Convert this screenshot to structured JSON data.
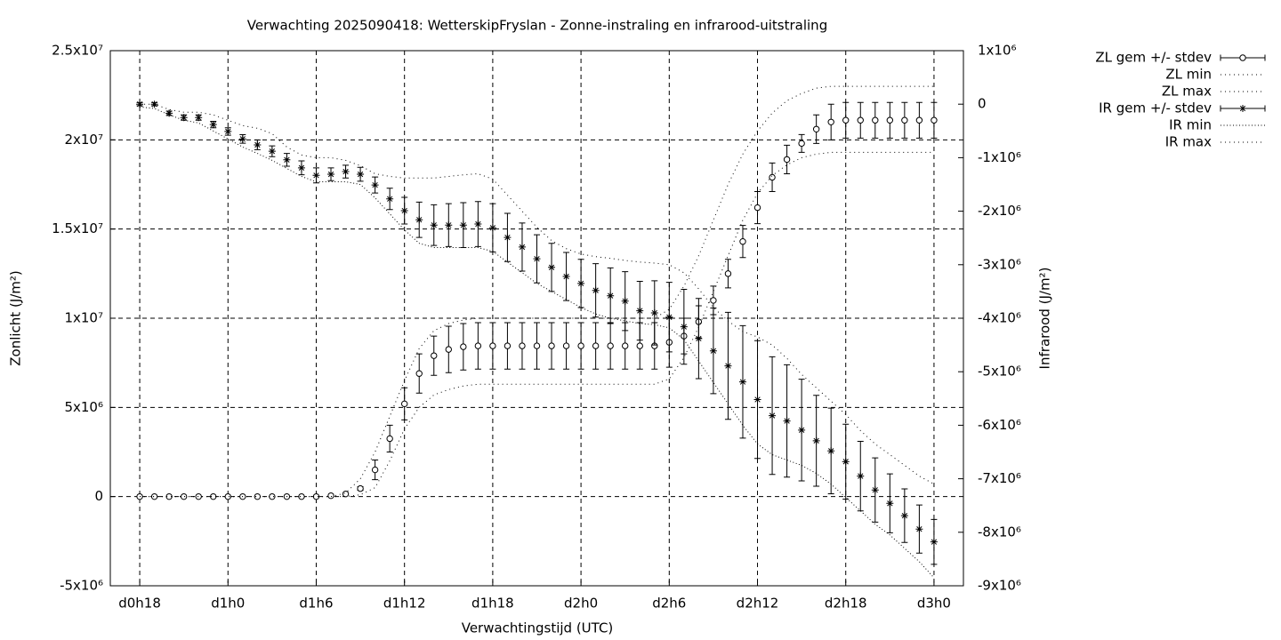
{
  "chart_data": {
    "type": "errorbar-line",
    "title": "Verwachting 2025090418: WetterskipFryslan - Zonne-instraling en infrarood-uitstraling",
    "x_label": "Verwachtingstijd (UTC)",
    "y_label": "Zonlicht (J/m²)",
    "y2_label": "Infrarood (J/m²)",
    "x": [
      18,
      19,
      20,
      21,
      22,
      23,
      24,
      25,
      26,
      27,
      28,
      29,
      30,
      31,
      32,
      33,
      34,
      35,
      36,
      37,
      38,
      39,
      40,
      41,
      42,
      43,
      44,
      45,
      46,
      47,
      48,
      49,
      50,
      51,
      52,
      53,
      54,
      55,
      56,
      57,
      58,
      59,
      60,
      61,
      62,
      63,
      64,
      65,
      66,
      67,
      68,
      69,
      70,
      71,
      72
    ],
    "xlim": [
      16,
      74
    ],
    "xticks": [
      {
        "value": 18,
        "label": "d0h18"
      },
      {
        "value": 24,
        "label": "d1h0"
      },
      {
        "value": 30,
        "label": "d1h6"
      },
      {
        "value": 36,
        "label": "d1h12"
      },
      {
        "value": 42,
        "label": "d1h18"
      },
      {
        "value": 48,
        "label": "d2h0"
      },
      {
        "value": 54,
        "label": "d2h6"
      },
      {
        "value": 60,
        "label": "d2h12"
      },
      {
        "value": 66,
        "label": "d2h18"
      },
      {
        "value": 72,
        "label": "d3h0"
      }
    ],
    "ylim": [
      -5000000.0,
      25000000.0
    ],
    "yticks": [
      {
        "value": -5000000.0,
        "label": "-5x10⁶"
      },
      0,
      {
        "value": 5000000.0,
        "label": "5x10⁶"
      },
      {
        "value": 10000000.0,
        "label": "1x10⁷"
      },
      {
        "value": 15000000.0,
        "label": "1.5x10⁷"
      },
      {
        "value": 20000000.0,
        "label": "2x10⁷"
      },
      {
        "value": 25000000.0,
        "label": "2.5x10⁷"
      }
    ],
    "y2lim": [
      -9000000.0,
      1000000.0
    ],
    "y2ticks": [
      {
        "value": -9000000.0,
        "label": "-9x10⁶"
      },
      {
        "value": -8000000.0,
        "label": "-8x10⁶"
      },
      {
        "value": -7000000.0,
        "label": "-7x10⁶"
      },
      {
        "value": -6000000.0,
        "label": "-6x10⁶"
      },
      {
        "value": -5000000.0,
        "label": "-5x10⁶"
      },
      {
        "value": -4000000.0,
        "label": "-4x10⁶"
      },
      {
        "value": -3000000.0,
        "label": "-3x10⁶"
      },
      {
        "value": -2000000.0,
        "label": "-2x10⁶"
      },
      {
        "value": -1000000.0,
        "label": "-1x10⁶"
      },
      0,
      {
        "value": 1000000.0,
        "label": "1x10⁶"
      }
    ],
    "grid": true,
    "series": [
      {
        "name": "ZL gem +/- stdev",
        "color": "#000000",
        "style": "errorbars",
        "marker": "circle",
        "values": [
          0,
          0,
          0,
          0,
          0,
          0,
          0,
          0,
          0,
          0,
          0,
          0,
          0,
          50000.0,
          150000.0,
          450000.0,
          1500000.0,
          3250000.0,
          5200000.0,
          6900000.0,
          7900000.0,
          8250000.0,
          8400000.0,
          8450000.0,
          8450000.0,
          8450000.0,
          8450000.0,
          8450000.0,
          8450000.0,
          8450000.0,
          8450000.0,
          8450000.0,
          8450000.0,
          8450000.0,
          8450000.0,
          8450000.0,
          8650000.0,
          9000000.0,
          9800000.0,
          11000000.0,
          12500000.0,
          14300000.0,
          16200000.0,
          17900000.0,
          18900000.0,
          19800000.0,
          20600000.0,
          21000000.0,
          21100000.0,
          21100000.0,
          21100000.0,
          21100000.0,
          21100000.0,
          21100000.0,
          21100000.0
        ],
        "errors": [
          0,
          0,
          0,
          0,
          0,
          0,
          0,
          0,
          0,
          0,
          0,
          0,
          0,
          0,
          0,
          100000.0,
          550000.0,
          750000.0,
          900000.0,
          1100000.0,
          1100000.0,
          1300000.0,
          1300000.0,
          1300000.0,
          1300000.0,
          1300000.0,
          1300000.0,
          1300000.0,
          1300000.0,
          1300000.0,
          1300000.0,
          1300000.0,
          1300000.0,
          1300000.0,
          1300000.0,
          1300000.0,
          1400000.0,
          1000000.0,
          900000.0,
          800000.0,
          800000.0,
          900000.0,
          900000.0,
          800000.0,
          800000.0,
          500000.0,
          800000.0,
          1000000.0,
          1000000.0,
          1000000.0,
          1000000.0,
          1000000.0,
          1000000.0,
          1000000.0,
          1000000.0
        ]
      },
      {
        "name": "ZL min",
        "color": "#000000",
        "style": "dotted",
        "values": [
          0,
          0,
          0,
          0,
          0,
          0,
          0,
          0,
          0,
          0,
          0,
          0,
          0,
          0,
          0,
          100000.0,
          500000.0,
          2000000.0,
          3800000.0,
          5000000.0,
          5700000.0,
          6000000.0,
          6200000.0,
          6300000.0,
          6300000.0,
          6300000.0,
          6300000.0,
          6300000.0,
          6300000.0,
          6300000.0,
          6300000.0,
          6300000.0,
          6300000.0,
          6300000.0,
          6300000.0,
          6300000.0,
          6600000.0,
          7800000.0,
          9500000.0,
          11500000.0,
          13500000.0,
          15500000.0,
          17000000.0,
          18000000.0,
          18600000.0,
          19000000.0,
          19200000.0,
          19300000.0,
          19300000.0,
          19300000.0,
          19300000.0,
          19300000.0,
          19300000.0,
          19300000.0,
          19300000.0
        ]
      },
      {
        "name": "ZL max",
        "color": "#000000",
        "style": "dotted",
        "values": [
          0,
          0,
          0,
          0,
          0,
          0,
          0,
          0,
          0,
          0,
          0,
          0,
          0,
          0,
          200000.0,
          1000000.0,
          2500000.0,
          4500000.0,
          6500000.0,
          8300000.0,
          9300000.0,
          9700000.0,
          9900000.0,
          10000000.0,
          10000000.0,
          10000000.0,
          10000000.0,
          10000000.0,
          10000000.0,
          10000000.0,
          10000000.0,
          10000000.0,
          10000000.0,
          10000000.0,
          10000000.0,
          10000000.0,
          10500000.0,
          11800000.0,
          13500000.0,
          15500000.0,
          17500000.0,
          19200000.0,
          20500000.0,
          21500000.0,
          22200000.0,
          22600000.0,
          22900000.0,
          23000000.0,
          23000000.0,
          23000000.0,
          23000000.0,
          23000000.0,
          23000000.0,
          23000000.0,
          23000000.0
        ]
      },
      {
        "name": "IR gem +/- stdev",
        "color": "#000000",
        "style": "errorbars",
        "marker": "asterisk",
        "axis": "y2",
        "values": [
          0,
          0,
          -170000.0,
          -250000.0,
          -250000.0,
          -380000.0,
          -510000.0,
          -650000.0,
          -760000.0,
          -880000.0,
          -1040000.0,
          -1190000.0,
          -1330000.0,
          -1310000.0,
          -1260000.0,
          -1310000.0,
          -1510000.0,
          -1770000.0,
          -1990000.0,
          -2160000.0,
          -2260000.0,
          -2260000.0,
          -2260000.0,
          -2240000.0,
          -2310000.0,
          -2490000.0,
          -2670000.0,
          -2890000.0,
          -3050000.0,
          -3220000.0,
          -3350000.0,
          -3480000.0,
          -3580000.0,
          -3680000.0,
          -3860000.0,
          -3900000.0,
          -3980000.0,
          -4160000.0,
          -4380000.0,
          -4610000.0,
          -4890000.0,
          -5190000.0,
          -5520000.0,
          -5820000.0,
          -5920000.0,
          -6090000.0,
          -6290000.0,
          -6480000.0,
          -6680000.0,
          -6950000.0,
          -7210000.0,
          -7460000.0,
          -7690000.0,
          -7940000.0,
          -8180000.0
        ],
        "errors": [
          30000.0,
          30000.0,
          40000.0,
          50000.0,
          50000.0,
          60000.0,
          70000.0,
          80000.0,
          90000.0,
          100000.0,
          120000.0,
          130000.0,
          140000.0,
          120000.0,
          120000.0,
          130000.0,
          150000.0,
          200000.0,
          250000.0,
          330000.0,
          380000.0,
          400000.0,
          420000.0,
          420000.0,
          450000.0,
          450000.0,
          450000.0,
          450000.0,
          450000.0,
          450000.0,
          450000.0,
          500000.0,
          520000.0,
          550000.0,
          550000.0,
          600000.0,
          650000.0,
          700000.0,
          750000.0,
          800000.0,
          1000000.0,
          1050000.0,
          1100000.0,
          1100000.0,
          1050000.0,
          950000.0,
          850000.0,
          800000.0,
          700000.0,
          650000.0,
          600000.0,
          550000.0,
          500000.0,
          450000.0,
          420000.0
        ]
      },
      {
        "name": "IR min",
        "color": "#000000",
        "style": "dense-dotted",
        "axis": "y2",
        "values": [
          -50000.0,
          -80000.0,
          -200000.0,
          -300000.0,
          -350000.0,
          -500000.0,
          -650000.0,
          -800000.0,
          -920000.0,
          -1050000.0,
          -1200000.0,
          -1350000.0,
          -1450000.0,
          -1450000.0,
          -1450000.0,
          -1500000.0,
          -1750000.0,
          -2050000.0,
          -2350000.0,
          -2600000.0,
          -2680000.0,
          -2680000.0,
          -2680000.0,
          -2680000.0,
          -2750000.0,
          -2950000.0,
          -3150000.0,
          -3350000.0,
          -3500000.0,
          -3650000.0,
          -3800000.0,
          -3920000.0,
          -4000000.0,
          -4050000.0,
          -4100000.0,
          -4120000.0,
          -4180000.0,
          -4400000.0,
          -4800000.0,
          -5200000.0,
          -5600000.0,
          -6000000.0,
          -6350000.0,
          -6550000.0,
          -6650000.0,
          -6750000.0,
          -6900000.0,
          -7100000.0,
          -7350000.0,
          -7600000.0,
          -7850000.0,
          -8050000.0,
          -8300000.0,
          -8550000.0,
          -8850000.0
        ]
      },
      {
        "name": "IR max",
        "color": "#000000",
        "style": "dotted",
        "axis": "y2",
        "values": [
          0,
          0,
          -100000.0,
          -150000.0,
          -150000.0,
          -200000.0,
          -300000.0,
          -400000.0,
          -450000.0,
          -550000.0,
          -800000.0,
          -950000.0,
          -1000000.0,
          -1000000.0,
          -1050000.0,
          -1150000.0,
          -1300000.0,
          -1350000.0,
          -1380000.0,
          -1380000.0,
          -1380000.0,
          -1350000.0,
          -1320000.0,
          -1300000.0,
          -1400000.0,
          -1700000.0,
          -2000000.0,
          -2300000.0,
          -2550000.0,
          -2700000.0,
          -2800000.0,
          -2850000.0,
          -2880000.0,
          -2920000.0,
          -2950000.0,
          -2970000.0,
          -3000000.0,
          -3150000.0,
          -3450000.0,
          -3800000.0,
          -4050000.0,
          -4250000.0,
          -4350000.0,
          -4500000.0,
          -4750000.0,
          -5050000.0,
          -5300000.0,
          -5550000.0,
          -5800000.0,
          -6100000.0,
          -6350000.0,
          -6550000.0,
          -6750000.0,
          -6950000.0,
          -7100000.0
        ]
      }
    ]
  }
}
